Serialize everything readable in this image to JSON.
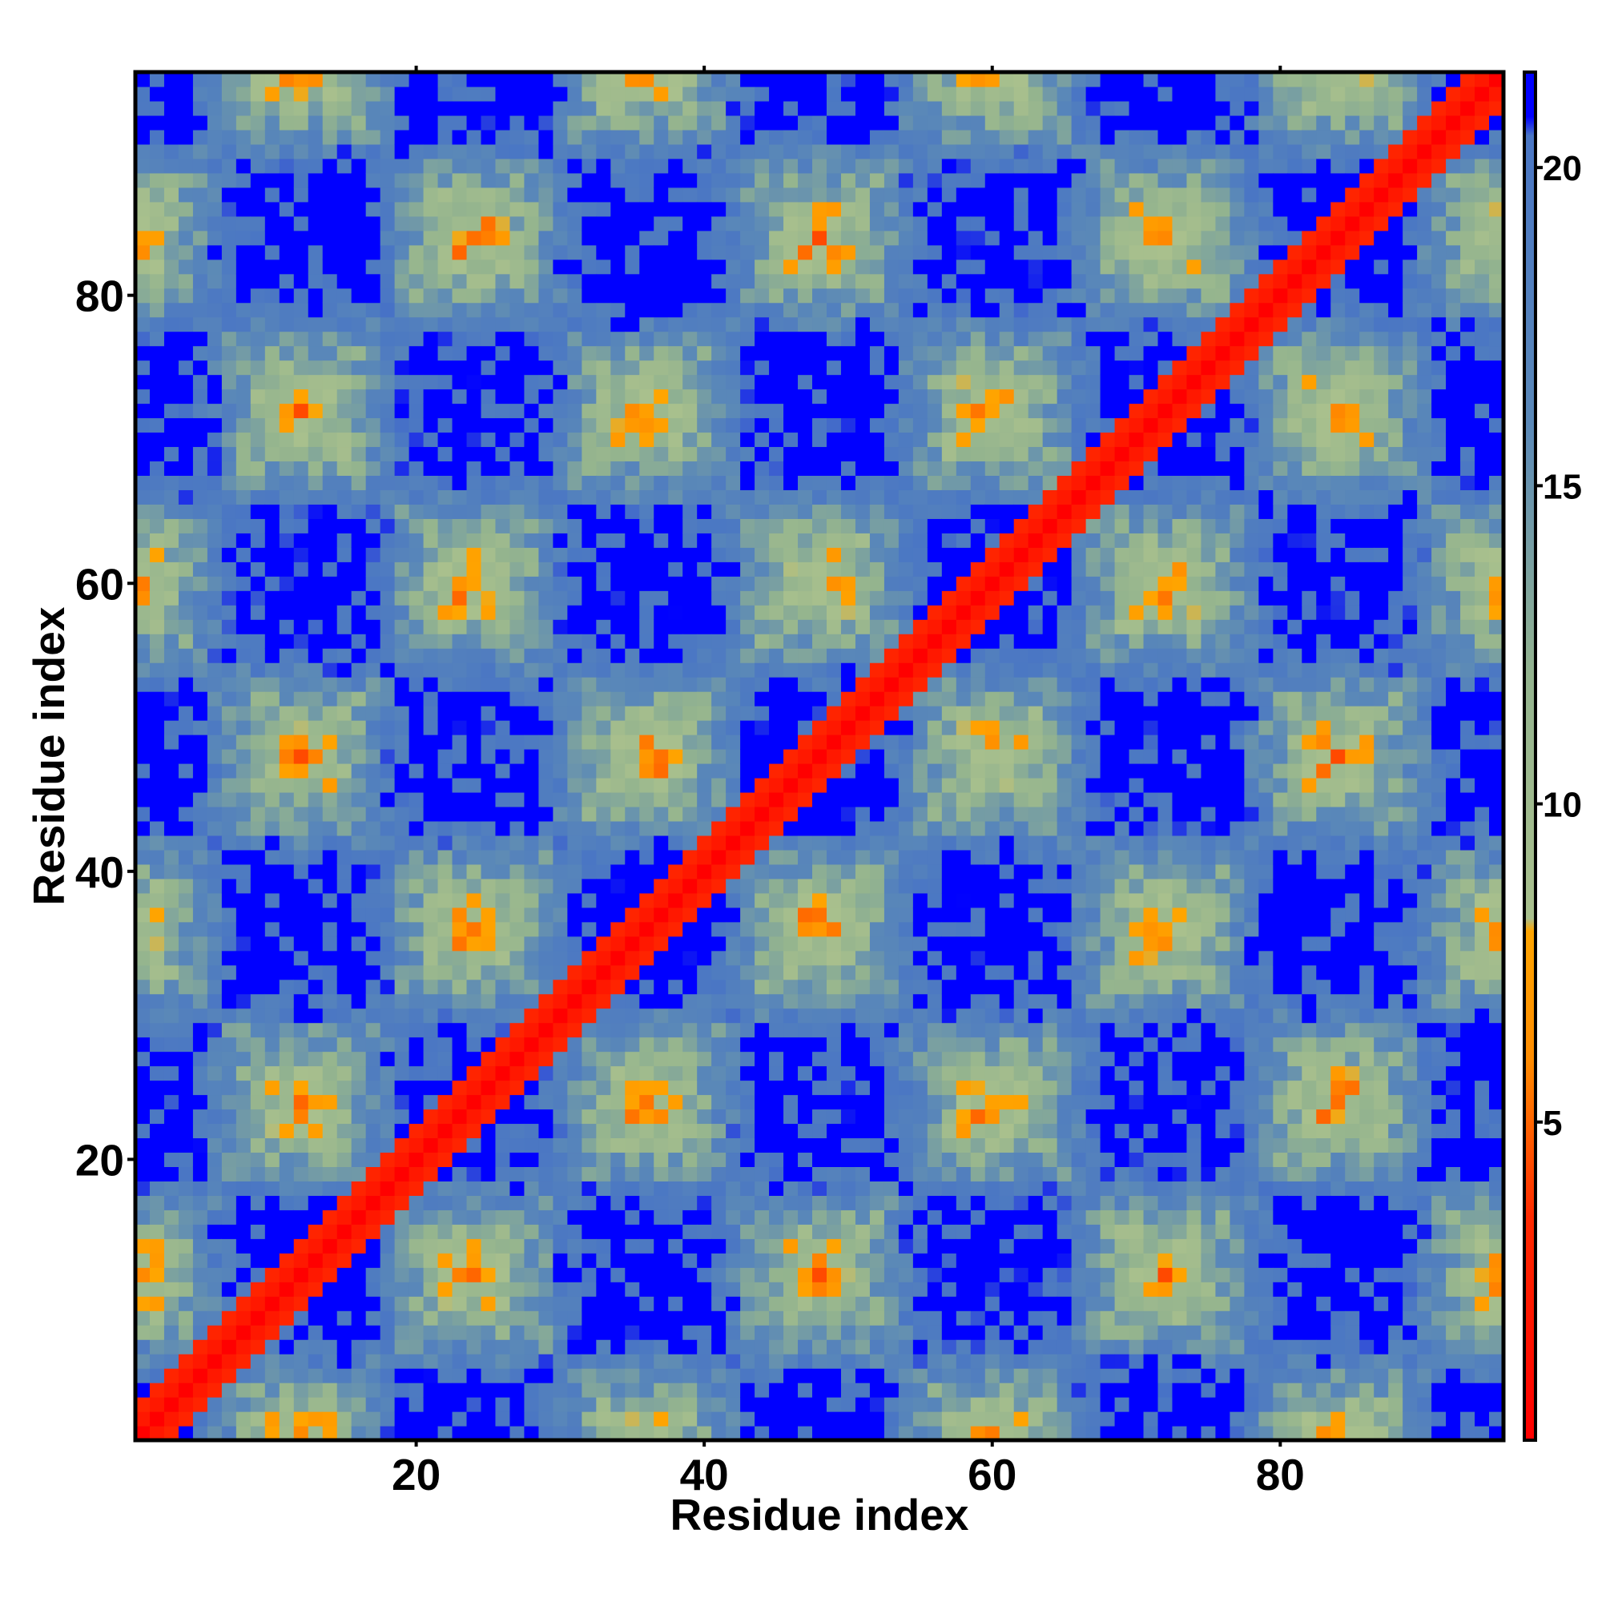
{
  "chart_data": {
    "type": "heatmap",
    "title": "",
    "xlabel": "Residue index",
    "ylabel": "Residue index",
    "n_residues": 95,
    "x_range": [
      1,
      95
    ],
    "y_range": [
      1,
      95
    ],
    "x_ticks": [
      20,
      40,
      60,
      80
    ],
    "y_ticks": [
      20,
      40,
      60,
      80
    ],
    "colorbar": {
      "range": [
        0,
        21.5
      ],
      "ticks": [
        5,
        10,
        15,
        20
      ],
      "stops": [
        {
          "value": 0,
          "color": "#ff0000"
        },
        {
          "value": 3.5,
          "color": "#ff2a00"
        },
        {
          "value": 6.0,
          "color": "#ff8c00"
        },
        {
          "value": 8.0,
          "color": "#ffa500"
        },
        {
          "value": 8.2,
          "color": "#a9c08d"
        },
        {
          "value": 12.0,
          "color": "#94b48e"
        },
        {
          "value": 16.0,
          "color": "#5a88b8"
        },
        {
          "value": 20.5,
          "color": "#4a76c4"
        },
        {
          "value": 20.8,
          "color": "#0000ff"
        },
        {
          "value": 21.5,
          "color": "#0000ff"
        }
      ]
    },
    "values_description_cap": 21.5,
    "colors": {
      "near": "#ff0000",
      "contact": "#ff9900",
      "mid": "#9fb98f",
      "far": "#5b89b7",
      "cutoff": "#0000ff"
    },
    "tick_labels": {
      "x": [
        "20",
        "40",
        "60",
        "80"
      ],
      "y": [
        "20",
        "40",
        "60",
        "80"
      ],
      "colorbar": [
        "5",
        "10",
        "15",
        "20"
      ]
    }
  }
}
